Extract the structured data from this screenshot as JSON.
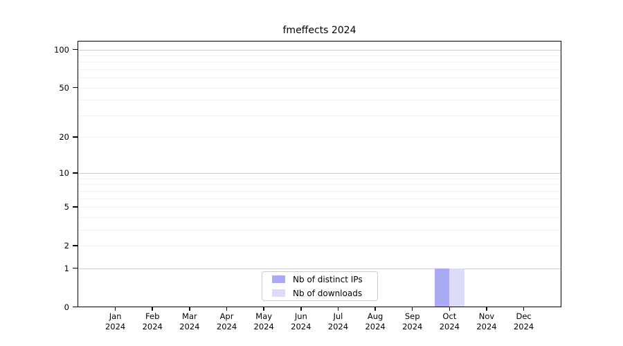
{
  "chart_data": {
    "type": "bar",
    "title": "fmeffects 2024",
    "categories": [
      [
        "Jan",
        "2024"
      ],
      [
        "Feb",
        "2024"
      ],
      [
        "Mar",
        "2024"
      ],
      [
        "Apr",
        "2024"
      ],
      [
        "May",
        "2024"
      ],
      [
        "Jun",
        "2024"
      ],
      [
        "Jul",
        "2024"
      ],
      [
        "Aug",
        "2024"
      ],
      [
        "Sep",
        "2024"
      ],
      [
        "Oct",
        "2024"
      ],
      [
        "Nov",
        "2024"
      ],
      [
        "Dec",
        "2024"
      ]
    ],
    "series": [
      {
        "name": "Nb of distinct IPs",
        "color": "#aaaaf2",
        "values": [
          0,
          0,
          0,
          0,
          0,
          0,
          0,
          0,
          0,
          1,
          0,
          0
        ]
      },
      {
        "name": "Nb of downloads",
        "color": "#dcdcf8",
        "values": [
          0,
          0,
          0,
          0,
          0,
          0,
          0,
          0,
          0,
          1,
          0,
          0
        ]
      }
    ],
    "xlabel": "",
    "ylabel": "",
    "yscale": "log1p",
    "ylim": [
      0,
      117
    ],
    "yticks": [
      0,
      1,
      2,
      5,
      10,
      20,
      50,
      100
    ],
    "grid_major": [
      1,
      10,
      100
    ],
    "grid_minor": [
      2,
      3,
      4,
      5,
      6,
      7,
      8,
      9,
      20,
      30,
      40,
      50,
      60,
      70,
      80,
      90
    ],
    "legend_position": "bottom-center-inside",
    "grid": "horizontal-on"
  }
}
